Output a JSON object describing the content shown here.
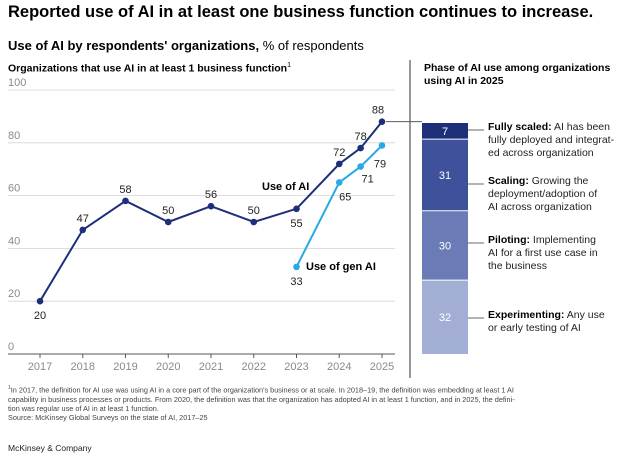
{
  "title": "Reported use of AI in at least one business function continues to increase.",
  "subtitle": {
    "bold": "Use of AI by respondents' organizations,",
    "rest": " % of respondents"
  },
  "left_heading": {
    "text": "Organizations that use AI in at least 1 business function",
    "sup": "1"
  },
  "right_heading": "Phase of AI use among organizations using AI in 2025",
  "chart_data": [
    {
      "type": "line",
      "title": "Organizations that use AI in at least 1 business function",
      "x": [
        "2017",
        "2018",
        "2019",
        "2020",
        "2021",
        "2022",
        "2023",
        "2024",
        "2025"
      ],
      "ylim": [
        0,
        100
      ],
      "yticks": [
        0,
        20,
        40,
        60,
        80,
        100
      ],
      "grid": true,
      "series": [
        {
          "name": "Use of AI",
          "color": "#1e2f7a",
          "x": [
            "2017",
            "2018",
            "2019",
            "2020",
            "2021",
            "2022",
            "2023",
            "2024",
            "2024.5",
            "2025"
          ],
          "values": [
            20,
            47,
            58,
            50,
            56,
            50,
            55,
            72,
            78,
            88
          ],
          "labels": [
            "20",
            "47",
            "58",
            "50",
            "56",
            "50",
            "55",
            "72",
            "78",
            "88"
          ]
        },
        {
          "name": "Use of gen AI",
          "color": "#28a9e6",
          "x": [
            "2023",
            "2024",
            "2024.5",
            "2025"
          ],
          "values": [
            33,
            65,
            71,
            79
          ],
          "labels": [
            "33",
            "65",
            "71",
            "79"
          ]
        }
      ]
    },
    {
      "type": "bar",
      "title": "Phase of AI use among organizations using AI in 2025",
      "stacked": true,
      "segments": [
        {
          "name": "Fully scaled",
          "description": "AI has been fully deployed and integrated across organization",
          "value": 7,
          "color": "#1e2f7a"
        },
        {
          "name": "Scaling",
          "description": "Growing the deployment/adoption of AI across organization",
          "value": 31,
          "color": "#3e519a"
        },
        {
          "name": "Piloting",
          "description": "Implementing AI for a first use case in the business",
          "value": 30,
          "color": "#6a7bb6"
        },
        {
          "name": "Experimenting",
          "description": "Any use or early testing of AI",
          "value": 32,
          "color": "#a3aed5"
        }
      ]
    }
  ],
  "phases": [
    {
      "name": "Fully scaled:",
      "line1": " AI has been",
      "line2": "fully deployed and integrat-",
      "line3": "ed across organization"
    },
    {
      "name": "Scaling:",
      "line1": " Growing the",
      "line2": "deployment/adoption of",
      "line3": "AI across organization"
    },
    {
      "name": "Piloting:",
      "line1": " Implementing",
      "line2": "AI for a first use case in",
      "line3": "the business"
    },
    {
      "name": "Experimenting:",
      "line1": " Any use",
      "line2": "or early testing of AI",
      "line3": ""
    }
  ],
  "footnote": {
    "sup": "1",
    "line1": "In 2017, the definition for AI use was using AI in a core part of the organization's business or at scale. In 2018–19, the definition was embedding at least 1 AI",
    "line2": "capability in business processes or products. From 2020, the definition was that the organization has adopted AI in at least 1 function, and in 2025, the defini-",
    "line3": "tion was regular use of AI in at least 1 function.",
    "source": "Source: McKinsey Global Surveys on the state of AI, 2017–25"
  },
  "brand": "McKinsey & Company"
}
